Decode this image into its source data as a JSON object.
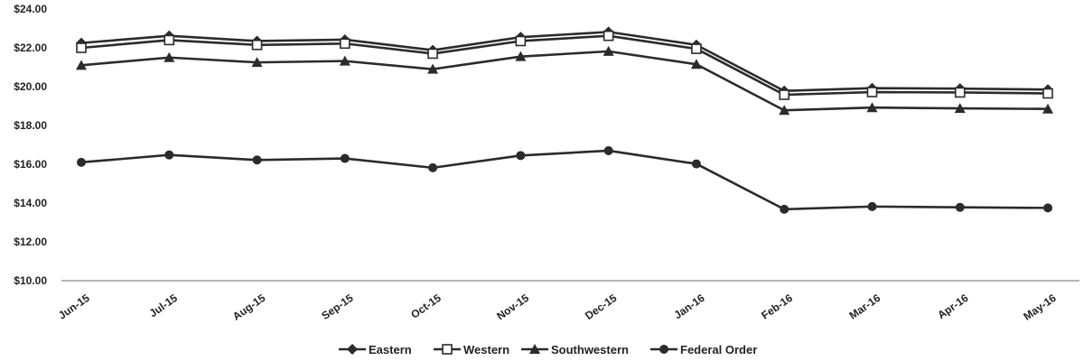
{
  "chart_data": {
    "type": "line",
    "categories": [
      "Jun-15",
      "Jul-15",
      "Aug-15",
      "Sep-15",
      "Oct-15",
      "Nov-15",
      "Dec-15",
      "Jan-16",
      "Feb-16",
      "Mar-16",
      "Apr-16",
      "May-16"
    ],
    "ylim": [
      10,
      24
    ],
    "yticks": [
      "$10.00",
      "$12.00",
      "$14.00",
      "$16.00",
      "$18.00",
      "$20.00",
      "$22.00",
      "$24.00"
    ],
    "ytick_values": [
      10,
      12,
      14,
      16,
      18,
      20,
      22,
      24
    ],
    "grid": false,
    "legend_position": "bottom",
    "series": [
      {
        "name": "Eastern",
        "marker": "diamond",
        "color": "#2b2b2b",
        "values": [
          22.25,
          22.62,
          22.35,
          22.42,
          21.88,
          22.55,
          22.82,
          22.15,
          19.78,
          19.92,
          19.9,
          19.85
        ]
      },
      {
        "name": "Western",
        "marker": "square-open",
        "color": "#2b2b2b",
        "values": [
          22.0,
          22.4,
          22.15,
          22.22,
          21.7,
          22.35,
          22.62,
          21.95,
          19.58,
          19.72,
          19.7,
          19.65
        ]
      },
      {
        "name": "Southwestern",
        "marker": "triangle",
        "color": "#2b2b2b",
        "values": [
          21.1,
          21.5,
          21.25,
          21.32,
          20.9,
          21.55,
          21.82,
          21.15,
          18.78,
          18.92,
          18.88,
          18.85
        ]
      },
      {
        "name": "Federal Order",
        "marker": "circle",
        "color": "#2b2b2b",
        "values": [
          16.1,
          16.48,
          16.22,
          16.3,
          15.82,
          16.45,
          16.7,
          16.02,
          13.68,
          13.82,
          13.78,
          13.75
        ]
      }
    ]
  }
}
